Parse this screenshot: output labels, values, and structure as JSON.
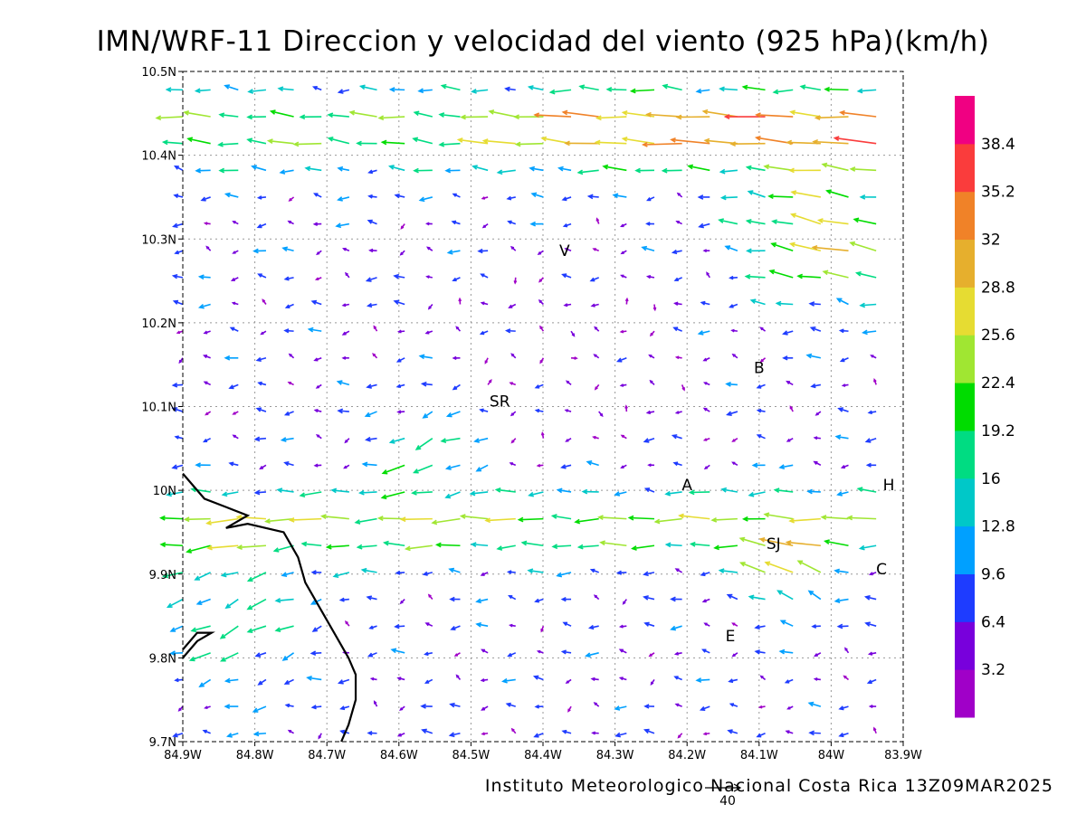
{
  "title": "IMN/WRF-11 Direccion y velocidad del viento (925 hPa)(km/h)",
  "footer": "Instituto Meteorologico Nacional Costa Rica 13Z09MAR2025",
  "reference_vector": {
    "value": 40,
    "label": "40"
  },
  "map": {
    "lon_range": [
      -84.9,
      -83.9
    ],
    "lat_range": [
      9.7,
      10.5
    ],
    "x_ticks": [
      {
        "value": -84.9,
        "label": "84.9W"
      },
      {
        "value": -84.8,
        "label": "84.8W"
      },
      {
        "value": -84.7,
        "label": "84.7W"
      },
      {
        "value": -84.6,
        "label": "84.6W"
      },
      {
        "value": -84.5,
        "label": "84.5W"
      },
      {
        "value": -84.4,
        "label": "84.4W"
      },
      {
        "value": -84.3,
        "label": "84.3W"
      },
      {
        "value": -84.2,
        "label": "84.2W"
      },
      {
        "value": -84.1,
        "label": "84.1W"
      },
      {
        "value": -84.0,
        "label": "84W"
      },
      {
        "value": -83.9,
        "label": "83.9W"
      }
    ],
    "y_ticks": [
      {
        "value": 9.7,
        "label": "9.7N"
      },
      {
        "value": 9.8,
        "label": "9.8N"
      },
      {
        "value": 9.9,
        "label": "9.9N"
      },
      {
        "value": 10.0,
        "label": "10N"
      },
      {
        "value": 10.1,
        "label": "10.1N"
      },
      {
        "value": 10.2,
        "label": "10.2N"
      },
      {
        "value": 10.3,
        "label": "10.3N"
      },
      {
        "value": 10.4,
        "label": "10.4N"
      },
      {
        "value": 10.5,
        "label": "10.5N"
      }
    ],
    "grid": true,
    "cities": [
      {
        "name": "V",
        "lon": -84.37,
        "lat": 10.28
      },
      {
        "name": "SR",
        "lon": -84.46,
        "lat": 10.1
      },
      {
        "name": "B",
        "lon": -84.1,
        "lat": 10.14
      },
      {
        "name": "A",
        "lon": -84.2,
        "lat": 10.0
      },
      {
        "name": "H",
        "lon": -83.92,
        "lat": 10.0
      },
      {
        "name": "SJ",
        "lon": -84.08,
        "lat": 9.93
      },
      {
        "name": "C",
        "lon": -83.93,
        "lat": 9.9
      },
      {
        "name": "E",
        "lon": -84.14,
        "lat": 9.82
      }
    ],
    "coastline": [
      [
        -84.9,
        10.02
      ],
      [
        -84.87,
        9.99
      ],
      [
        -84.84,
        9.98
      ],
      [
        -84.81,
        9.97
      ],
      [
        -84.84,
        9.955
      ],
      [
        -84.81,
        9.96
      ],
      [
        -84.76,
        9.95
      ],
      [
        -84.74,
        9.92
      ],
      [
        -84.73,
        9.89
      ],
      [
        -84.71,
        9.86
      ],
      [
        -84.69,
        9.83
      ],
      [
        -84.67,
        9.8
      ],
      [
        -84.66,
        9.78
      ],
      [
        -84.66,
        9.75
      ],
      [
        -84.67,
        9.72
      ],
      [
        -84.68,
        9.7
      ]
    ],
    "coastline2": [
      [
        -84.9,
        9.81
      ],
      [
        -84.88,
        9.83
      ],
      [
        -84.86,
        9.83
      ],
      [
        -84.88,
        9.82
      ],
      [
        -84.9,
        9.8
      ]
    ]
  },
  "colorbar": {
    "levels": [
      "3.2",
      "6.4",
      "9.6",
      "12.8",
      "16",
      "19.2",
      "22.4",
      "25.6",
      "28.8",
      "32",
      "35.2",
      "38.4"
    ],
    "colors": [
      "#a000c8",
      "#7800dc",
      "#1e3cff",
      "#00a0ff",
      "#00c8c8",
      "#00dc82",
      "#00dc00",
      "#a0e632",
      "#e6dc32",
      "#e6af2d",
      "#f08228",
      "#fa3c3c",
      "#f00082"
    ]
  },
  "winds": {
    "lon_start": -84.9,
    "lon_step": 0.0385,
    "lat_start": 9.71,
    "lat_step": 0.032,
    "ncols": 27,
    "nrows": 25
  }
}
